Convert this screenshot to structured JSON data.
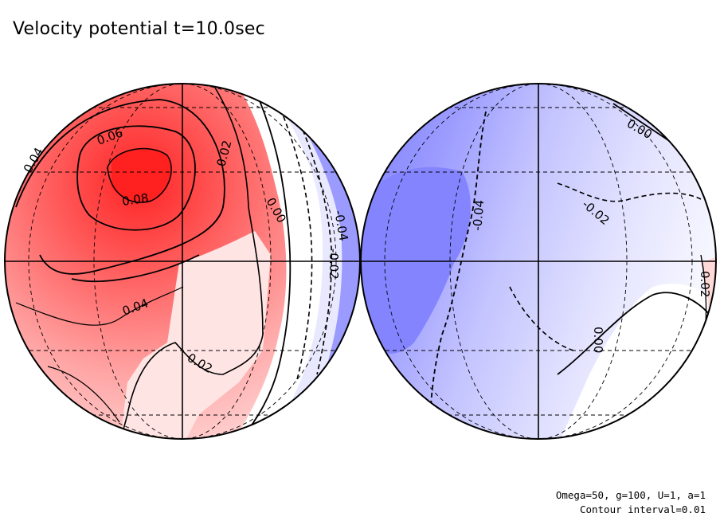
{
  "title": "Velocity potential t=10.0sec",
  "footer": {
    "params": "Omega=50, g=100, U=1, a=1",
    "contour_interval": "Contour interval=0.01"
  },
  "colors": {
    "positive_max": "#ff2020",
    "positive_mid": "#ff8080",
    "positive_light": "#ffeaea",
    "negative_max": "#7a7aff",
    "negative_mid": "#b8b8ff",
    "negative_light": "#eeeeff",
    "outline": "#000000"
  },
  "left_hemisphere": {
    "contour_labels": [
      "0.06",
      "0.04",
      "0.08",
      "0.02",
      "0.00",
      "-0.04",
      "-0.02",
      "0.04",
      "0.02"
    ]
  },
  "right_hemisphere": {
    "contour_labels": [
      "0.00",
      "-0.04",
      "-0.02",
      "0.00",
      "0.02"
    ]
  }
}
